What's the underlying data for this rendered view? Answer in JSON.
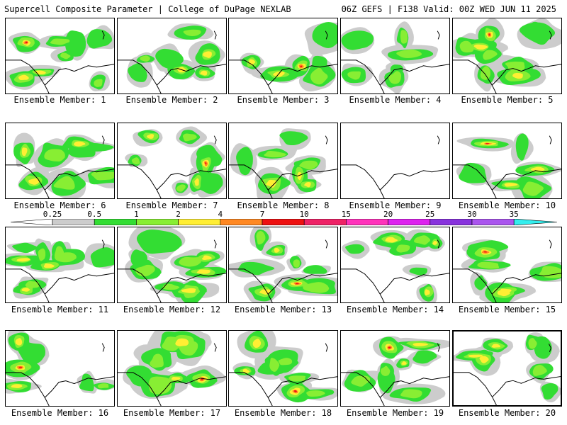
{
  "header": {
    "left": "Supercell Composite Parameter | College of DuPage NEXLAB",
    "right": "06Z GEFS | F138 Valid: 00Z WED JUN 11 2025"
  },
  "legend": {
    "ticks": [
      "0.25",
      "0.5",
      "1",
      "2",
      "4",
      "7",
      "10",
      "15",
      "20",
      "25",
      "30",
      "35"
    ],
    "colors": [
      "#cccccc",
      "#33dd33",
      "#88ee33",
      "#ffee33",
      "#ff8822",
      "#ee1111",
      "#ee2266",
      "#ff33bb",
      "#dd22ee",
      "#8833dd",
      "#aa55ee",
      "#33eeee"
    ]
  },
  "members": [
    {
      "label": "Ensemble Member: 1",
      "selected": false,
      "intensity": 3
    },
    {
      "label": "Ensemble Member: 2",
      "selected": false,
      "intensity": 2
    },
    {
      "label": "Ensemble Member: 3",
      "selected": false,
      "intensity": 3
    },
    {
      "label": "Ensemble Member: 4",
      "selected": false,
      "intensity": 1
    },
    {
      "label": "Ensemble Member: 5",
      "selected": false,
      "intensity": 3
    },
    {
      "label": "Ensemble Member: 6",
      "selected": false,
      "intensity": 2
    },
    {
      "label": "Ensemble Member: 7",
      "selected": false,
      "intensity": 3
    },
    {
      "label": "Ensemble Member: 8",
      "selected": false,
      "intensity": 2
    },
    {
      "label": "Ensemble Member: 9",
      "selected": false,
      "intensity": 0
    },
    {
      "label": "Ensemble Member: 10",
      "selected": false,
      "intensity": 3
    },
    {
      "label": "Ensemble Member: 11",
      "selected": false,
      "intensity": 2
    },
    {
      "label": "Ensemble Member: 12",
      "selected": false,
      "intensity": 2
    },
    {
      "label": "Ensemble Member: 13",
      "selected": false,
      "intensity": 3
    },
    {
      "label": "Ensemble Member: 14",
      "selected": false,
      "intensity": 2
    },
    {
      "label": "Ensemble Member: 15",
      "selected": false,
      "intensity": 3
    },
    {
      "label": "Ensemble Member: 16",
      "selected": false,
      "intensity": 3
    },
    {
      "label": "Ensemble Member: 17",
      "selected": false,
      "intensity": 3
    },
    {
      "label": "Ensemble Member: 18",
      "selected": false,
      "intensity": 3
    },
    {
      "label": "Ensemble Member: 19",
      "selected": false,
      "intensity": 3
    },
    {
      "label": "Ensemble Member: 20",
      "selected": true,
      "intensity": 2
    }
  ]
}
